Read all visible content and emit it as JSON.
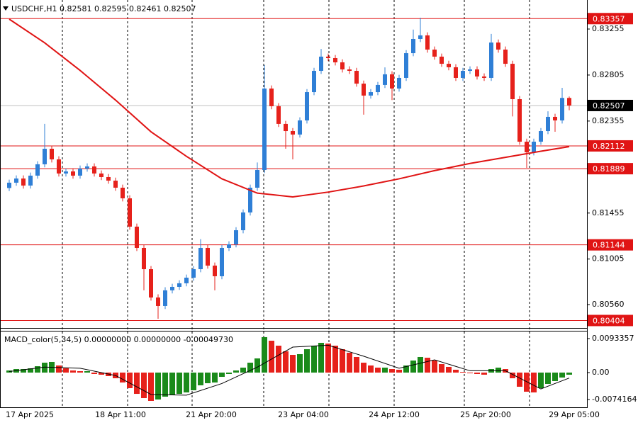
{
  "chart_data": [
    {
      "type": "candlestick",
      "header": "USDCHF,H1  0.82581 0.82595 0.82461 0.82507",
      "open": [
        0.817,
        0.81752,
        0.81793,
        0.81724,
        0.81821,
        0.81932,
        0.82084,
        0.8198,
        0.81842,
        0.81862,
        0.81821,
        0.8189,
        0.81911,
        0.81842,
        0.81807,
        0.81772,
        0.81703,
        0.81599,
        0.81322,
        0.81114,
        0.80906,
        0.80629,
        0.80546,
        0.80699,
        0.80733,
        0.80768,
        0.80823,
        0.80906,
        0.81114,
        0.80941,
        0.80837,
        0.81114,
        0.81149,
        0.81287,
        0.81461,
        0.81703,
        0.81876,
        0.82673,
        0.825,
        0.82327,
        0.82257,
        0.82223,
        0.82361,
        0.82638,
        0.82846,
        0.82985,
        0.82971,
        0.82929,
        0.8286,
        0.82846,
        0.82721,
        0.82604,
        0.82638,
        0.82708,
        0.82812,
        0.82673,
        0.82777,
        0.83019,
        0.83158,
        0.83193,
        0.83054,
        0.82985,
        0.82915,
        0.82881,
        0.82777,
        0.82846,
        0.8286,
        0.82791,
        0.82777,
        0.83123,
        0.83054,
        0.82915,
        0.82569,
        0.82153,
        0.82049,
        0.82153,
        0.82257,
        0.82396,
        0.82361,
        0.82581
      ],
      "high": [
        0.81782,
        0.81823,
        0.81823,
        0.81851,
        0.81962,
        0.82327,
        0.82114,
        0.8201,
        0.81892,
        0.81892,
        0.8192,
        0.81941,
        0.81941,
        0.81872,
        0.81837,
        0.81802,
        0.81733,
        0.81629,
        0.81352,
        0.81144,
        0.80936,
        0.8066,
        0.80729,
        0.80763,
        0.80798,
        0.80853,
        0.80936,
        0.812,
        0.81144,
        0.80971,
        0.81144,
        0.81179,
        0.81317,
        0.81491,
        0.81733,
        0.8195,
        0.82902,
        0.82703,
        0.8253,
        0.82357,
        0.82287,
        0.82391,
        0.82668,
        0.82876,
        0.8306,
        0.83015,
        0.83001,
        0.82959,
        0.8289,
        0.82876,
        0.82751,
        0.82668,
        0.82738,
        0.8288,
        0.82842,
        0.82807,
        0.83049,
        0.8325,
        0.83366,
        0.83223,
        0.83084,
        0.83015,
        0.82945,
        0.82911,
        0.82876,
        0.8289,
        0.8289,
        0.82821,
        0.83207,
        0.83153,
        0.83084,
        0.82945,
        0.82599,
        0.82183,
        0.82183,
        0.82287,
        0.8245,
        0.82426,
        0.8268,
        0.82595
      ],
      "low": [
        0.8167,
        0.81722,
        0.81694,
        0.81694,
        0.81791,
        0.81902,
        0.8195,
        0.81812,
        0.81812,
        0.81791,
        0.81791,
        0.8186,
        0.81812,
        0.81777,
        0.81742,
        0.81673,
        0.81569,
        0.81292,
        0.81084,
        0.80699,
        0.80599,
        0.80421,
        0.80516,
        0.80669,
        0.80703,
        0.80738,
        0.80793,
        0.80876,
        0.80911,
        0.80699,
        0.80807,
        0.81084,
        0.81119,
        0.81257,
        0.81431,
        0.81673,
        0.81846,
        0.8247,
        0.82297,
        0.82084,
        0.8198,
        0.82193,
        0.82331,
        0.82608,
        0.82816,
        0.82941,
        0.82899,
        0.8283,
        0.82816,
        0.82691,
        0.82417,
        0.82574,
        0.82608,
        0.82678,
        0.8256,
        0.82643,
        0.82747,
        0.82989,
        0.83128,
        0.83024,
        0.82955,
        0.82885,
        0.82851,
        0.82747,
        0.82747,
        0.82816,
        0.82761,
        0.82747,
        0.82747,
        0.83024,
        0.82885,
        0.824,
        0.82123,
        0.81897,
        0.82019,
        0.82123,
        0.82227,
        0.8225,
        0.82331,
        0.82461
      ],
      "close": [
        0.81752,
        0.81793,
        0.81724,
        0.81821,
        0.81932,
        0.82084,
        0.8198,
        0.81842,
        0.81862,
        0.81821,
        0.8189,
        0.81911,
        0.81842,
        0.81807,
        0.81772,
        0.81703,
        0.81599,
        0.81322,
        0.81114,
        0.80906,
        0.80629,
        0.80546,
        0.80699,
        0.80733,
        0.80768,
        0.80823,
        0.80906,
        0.81114,
        0.80941,
        0.80837,
        0.81114,
        0.81149,
        0.81287,
        0.81461,
        0.81703,
        0.81876,
        0.82673,
        0.825,
        0.82327,
        0.82257,
        0.82223,
        0.82361,
        0.82638,
        0.82846,
        0.82985,
        0.82971,
        0.82929,
        0.8286,
        0.82846,
        0.82721,
        0.82604,
        0.82638,
        0.82708,
        0.82812,
        0.82673,
        0.82777,
        0.83019,
        0.83158,
        0.83193,
        0.83054,
        0.82985,
        0.82915,
        0.82881,
        0.82777,
        0.82846,
        0.8286,
        0.82791,
        0.82777,
        0.83123,
        0.83054,
        0.82915,
        0.82569,
        0.82153,
        0.82049,
        0.82153,
        0.82257,
        0.82396,
        0.82361,
        0.82581,
        0.82507
      ],
      "up_color": "#2f7fd6",
      "down_color": "#e6211b",
      "ma": {
        "x": [
          0,
          5,
          10,
          15,
          20,
          25,
          30,
          35,
          40,
          45,
          50,
          55,
          60,
          65,
          70,
          75,
          79
        ],
        "values": [
          0.83352,
          0.8312,
          0.8285,
          0.8256,
          0.8225,
          0.8201,
          0.8179,
          0.8165,
          0.81613,
          0.8166,
          0.8172,
          0.8179,
          0.8187,
          0.8194,
          0.82,
          0.8206,
          0.82105
        ],
        "color": "#e01414"
      },
      "levels": [
        0.83357,
        0.82112,
        0.81889,
        0.81144,
        0.80404
      ],
      "level_color": "#e01414",
      "last_price": 0.82507,
      "ylim": [
        0.80331,
        0.83539
      ],
      "yticks": [
        0.83255,
        0.82805,
        0.82355,
        0.81455,
        0.81005,
        {
          "value": 0.8056,
          "label": "0.80560"
        }
      ],
      "x_labels": [
        "17 Apr 2025",
        "18 Apr 11:00",
        "21 Apr 20:00",
        "23 Apr 04:00",
        "24 Apr 12:00",
        "25 Apr 20:00",
        "29 Apr 05:00"
      ]
    },
    {
      "type": "macd",
      "header": "MACD_color(5,34,5) 0.00000000 0.00000000 -0.00049730",
      "values": [
        0.00058,
        0.00097,
        0.00097,
        0.00117,
        0.00175,
        0.00272,
        0.00292,
        0.00195,
        0.00117,
        0.00058,
        0.00039,
        0.00039,
        -0.00039,
        -0.00058,
        -0.00097,
        -0.00156,
        -0.00272,
        -0.00428,
        -0.00584,
        -0.007,
        -0.00778,
        -0.00739,
        -0.00661,
        -0.00622,
        -0.00584,
        -0.00545,
        -0.00486,
        -0.0035,
        -0.00292,
        -0.00272,
        -0.00117,
        -0.00039,
        0.00058,
        0.00136,
        0.00272,
        0.00389,
        0.00973,
        0.00875,
        0.00739,
        0.00584,
        0.00486,
        0.00506,
        0.00642,
        0.00739,
        0.00817,
        0.00797,
        0.00739,
        0.00642,
        0.00545,
        0.00428,
        0.00272,
        0.00195,
        0.00136,
        0.00136,
        0.00097,
        0.00078,
        0.00195,
        0.00331,
        0.00428,
        0.00408,
        0.00331,
        0.00233,
        0.00156,
        0.00078,
        0.00019,
        -0.00019,
        -0.00039,
        -0.00058,
        0.00097,
        0.00136,
        0.00097,
        -0.00156,
        -0.00389,
        -0.00525,
        -0.00545,
        -0.00428,
        -0.00311,
        -0.00233,
        -0.00136,
        -0.00058
      ],
      "up_color": "#1a8a1a",
      "down_color": "#e6211b",
      "signal": {
        "x": [
          0,
          5,
          10,
          15,
          20,
          25,
          30,
          35,
          40,
          45,
          50,
          55,
          60,
          65,
          70,
          75,
          79
        ],
        "values": [
          0.0003,
          0.0015,
          0.0012,
          -0.0008,
          -0.006,
          -0.0062,
          -0.003,
          0.0015,
          0.007,
          0.0075,
          0.0045,
          0.0012,
          0.0035,
          0.0005,
          0.0005,
          -0.0045,
          -0.0015
        ],
        "color": "#000000"
      },
      "ylim": [
        -0.009529,
        0.011474
      ],
      "yticks": [
        0.0093357,
        {
          "value": 0,
          "label": "0.00"
        },
        -0.0074164
      ]
    }
  ]
}
